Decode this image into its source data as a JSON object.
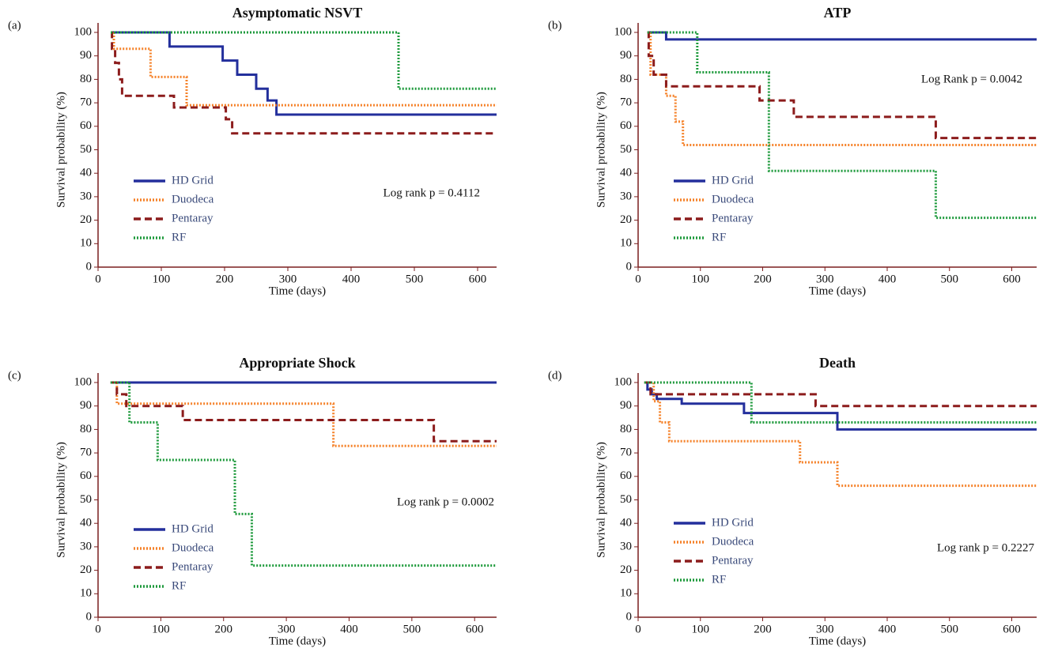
{
  "chart_data": [
    {
      "type": "line",
      "panel": "(a)",
      "title": "Asymptomatic NSVT",
      "xlabel": "Time (days)",
      "ylabel": "Survival probability (%)",
      "annotation": "Log rank p = 0.4112",
      "legend": "lower left",
      "xlim": [
        0,
        630
      ],
      "xticks": [
        0,
        100,
        200,
        300,
        400,
        500,
        600
      ],
      "ylim": [
        0,
        100
      ],
      "yticks": [
        0,
        10,
        20,
        30,
        40,
        50,
        60,
        70,
        80,
        90,
        100
      ],
      "series": [
        {
          "name": "HD Grid",
          "color": "#232f9c",
          "linestyle": "solid",
          "x": [
            20,
            113,
            113,
            197,
            197,
            220,
            220,
            250,
            250,
            268,
            268,
            282,
            282,
            630
          ],
          "values": [
            100,
            100,
            94,
            94,
            88,
            88,
            82,
            82,
            76,
            76,
            71,
            71,
            65,
            65
          ]
        },
        {
          "name": "Duodeca",
          "color": "#f5822a",
          "linestyle": "dotted",
          "x": [
            20,
            25,
            25,
            83,
            83,
            140,
            140,
            630
          ],
          "values": [
            100,
            100,
            93,
            93,
            81,
            81,
            69,
            69
          ]
        },
        {
          "name": "Pentaray",
          "color": "#8c1c1c",
          "linestyle": "dashed",
          "x": [
            20,
            22,
            22,
            27,
            27,
            33,
            33,
            38,
            38,
            120,
            120,
            202,
            202,
            212,
            212,
            630
          ],
          "values": [
            100,
            100,
            93,
            93,
            87,
            87,
            80,
            80,
            73,
            73,
            68,
            68,
            63,
            63,
            57,
            57
          ]
        },
        {
          "name": "RF",
          "color": "#1e9a3c",
          "linestyle": "dotted",
          "x": [
            20,
            475,
            475,
            630
          ],
          "values": [
            100,
            100,
            76,
            76
          ]
        }
      ]
    },
    {
      "type": "line",
      "panel": "(b)",
      "title": "ATP",
      "xlabel": "Time (days)",
      "ylabel": "Survival probability (%)",
      "annotation": "Log Rank p = 0.0042",
      "legend": "lower left",
      "xlim": [
        0,
        640
      ],
      "xticks": [
        0,
        100,
        200,
        300,
        400,
        500,
        600
      ],
      "ylim": [
        0,
        100
      ],
      "yticks": [
        0,
        10,
        20,
        30,
        40,
        50,
        60,
        70,
        80,
        90,
        100
      ],
      "series": [
        {
          "name": "HD Grid",
          "color": "#232f9c",
          "linestyle": "solid",
          "x": [
            15,
            45,
            45,
            640
          ],
          "values": [
            100,
            100,
            97,
            97
          ]
        },
        {
          "name": "Duodeca",
          "color": "#f5822a",
          "linestyle": "dotted",
          "x": [
            15,
            20,
            20,
            45,
            45,
            60,
            60,
            72,
            72,
            640
          ],
          "values": [
            100,
            100,
            82,
            82,
            73,
            73,
            62,
            62,
            52,
            52
          ]
        },
        {
          "name": "Pentaray",
          "color": "#8c1c1c",
          "linestyle": "dashed",
          "x": [
            15,
            17,
            17,
            25,
            25,
            45,
            45,
            195,
            195,
            250,
            250,
            478,
            478,
            640
          ],
          "values": [
            100,
            100,
            90,
            90,
            82,
            82,
            77,
            77,
            71,
            71,
            64,
            64,
            55,
            55
          ]
        },
        {
          "name": "RF",
          "color": "#1e9a3c",
          "linestyle": "dotted",
          "x": [
            15,
            95,
            95,
            210,
            210,
            478,
            478,
            640
          ],
          "values": [
            100,
            100,
            83,
            83,
            41,
            41,
            21,
            21
          ]
        }
      ]
    },
    {
      "type": "line",
      "panel": "(c)",
      "title": "Appropriate Shock",
      "xlabel": "Time (days)",
      "ylabel": "Survival probability (%)",
      "annotation": "Log rank p = 0.0002",
      "legend": "lower left",
      "xlim": [
        0,
        635
      ],
      "xticks": [
        0,
        100,
        200,
        300,
        400,
        500,
        600
      ],
      "ylim": [
        0,
        100
      ],
      "yticks": [
        0,
        10,
        20,
        30,
        40,
        50,
        60,
        70,
        80,
        90,
        100
      ],
      "series": [
        {
          "name": "HD Grid",
          "color": "#232f9c",
          "linestyle": "solid",
          "x": [
            20,
            635
          ],
          "values": [
            100,
            100
          ]
        },
        {
          "name": "Duodeca",
          "color": "#f5822a",
          "linestyle": "dotted",
          "x": [
            20,
            30,
            30,
            375,
            375,
            635
          ],
          "values": [
            100,
            100,
            91,
            91,
            73,
            73
          ]
        },
        {
          "name": "Pentaray",
          "color": "#8c1c1c",
          "linestyle": "dashed",
          "x": [
            20,
            30,
            30,
            45,
            45,
            135,
            135,
            535,
            535,
            635
          ],
          "values": [
            100,
            100,
            95,
            95,
            90,
            90,
            84,
            84,
            75,
            75
          ]
        },
        {
          "name": "RF",
          "color": "#1e9a3c",
          "linestyle": "dotted",
          "x": [
            20,
            50,
            50,
            95,
            95,
            218,
            218,
            245,
            245,
            635
          ],
          "values": [
            100,
            100,
            83,
            83,
            67,
            67,
            44,
            44,
            22,
            22
          ]
        }
      ]
    },
    {
      "type": "line",
      "panel": "(d)",
      "title": "Death",
      "xlabel": "Time (days)",
      "ylabel": "Survival probability (%)",
      "annotation": "Log rank p = 0.2227",
      "legend": "lower left",
      "xlim": [
        0,
        640
      ],
      "xticks": [
        0,
        100,
        200,
        300,
        400,
        500,
        600
      ],
      "ylim": [
        0,
        100
      ],
      "yticks": [
        0,
        10,
        20,
        30,
        40,
        50,
        60,
        70,
        80,
        90,
        100
      ],
      "series": [
        {
          "name": "HD Grid",
          "color": "#232f9c",
          "linestyle": "solid",
          "x": [
            10,
            15,
            15,
            22,
            22,
            30,
            30,
            70,
            70,
            170,
            170,
            320,
            320,
            640
          ],
          "values": [
            100,
            100,
            97,
            97,
            95,
            95,
            93,
            93,
            91,
            91,
            87,
            87,
            80,
            80
          ]
        },
        {
          "name": "Duodeca",
          "color": "#f5822a",
          "linestyle": "dotted",
          "x": [
            10,
            25,
            25,
            35,
            35,
            50,
            50,
            260,
            260,
            320,
            320,
            640
          ],
          "values": [
            100,
            100,
            92,
            92,
            83,
            83,
            75,
            75,
            66,
            66,
            56,
            56
          ]
        },
        {
          "name": "Pentaray",
          "color": "#8c1c1c",
          "linestyle": "dashed",
          "x": [
            10,
            20,
            20,
            285,
            285,
            640
          ],
          "values": [
            100,
            100,
            95,
            95,
            90,
            90
          ]
        },
        {
          "name": "RF",
          "color": "#1e9a3c",
          "linestyle": "dotted",
          "x": [
            10,
            182,
            182,
            640
          ],
          "values": [
            100,
            100,
            83,
            83
          ]
        }
      ]
    }
  ]
}
